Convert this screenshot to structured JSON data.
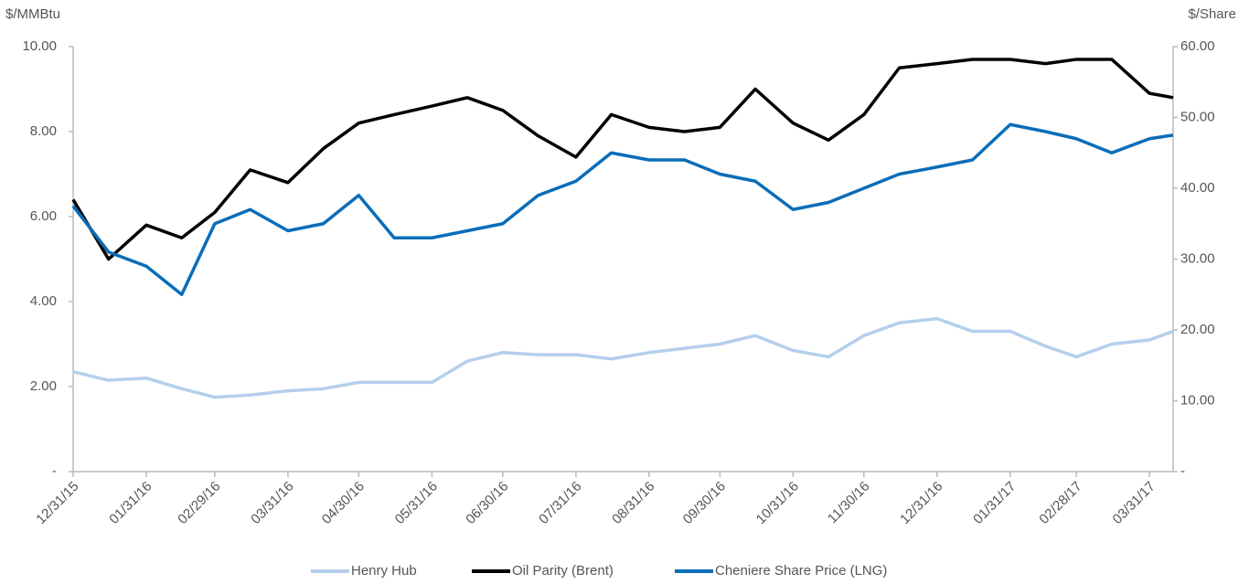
{
  "chart_data": {
    "type": "line",
    "ylabel": "$/MMBtu",
    "y2label": "$/Share",
    "x": [
      "2015-12-31",
      "2016-01-15",
      "2016-01-31",
      "2016-02-15",
      "2016-02-29",
      "2016-03-15",
      "2016-03-31",
      "2016-04-15",
      "2016-04-30",
      "2016-05-15",
      "2016-05-31",
      "2016-06-15",
      "2016-06-30",
      "2016-07-15",
      "2016-07-31",
      "2016-08-15",
      "2016-08-31",
      "2016-09-15",
      "2016-09-30",
      "2016-10-15",
      "2016-10-31",
      "2016-11-15",
      "2016-11-30",
      "2016-12-15",
      "2016-12-31",
      "2017-01-15",
      "2017-01-31",
      "2017-02-15",
      "2017-02-28",
      "2017-03-15",
      "2017-03-31",
      "2017-04-10"
    ],
    "series": [
      {
        "name": "Henry Hub",
        "color": "#b4cfec",
        "values": [
          2.35,
          2.15,
          2.2,
          1.95,
          1.75,
          1.8,
          1.9,
          1.95,
          2.1,
          2.1,
          2.1,
          2.6,
          2.8,
          2.75,
          2.75,
          2.65,
          2.8,
          2.9,
          3.0,
          3.2,
          2.85,
          2.7,
          3.2,
          3.5,
          3.6,
          3.3,
          3.3,
          2.95,
          2.7,
          3.0,
          3.1,
          3.3
        ]
      },
      {
        "name": "Oil Parity (Brent)",
        "color": "#000000",
        "values": [
          6.4,
          5.0,
          5.8,
          5.5,
          6.1,
          7.1,
          6.8,
          7.6,
          8.2,
          8.4,
          8.6,
          8.8,
          8.5,
          7.9,
          7.4,
          8.4,
          8.1,
          8.0,
          8.1,
          9.0,
          8.2,
          7.8,
          8.4,
          9.5,
          9.6,
          9.7,
          9.7,
          9.6,
          9.7,
          9.7,
          8.9,
          8.8
        ]
      },
      {
        "name": "Cheniere Share Price (LNG)",
        "color": "#0a6db8",
        "axis": "y2",
        "values": [
          37.5,
          31,
          29,
          25,
          35,
          37,
          34,
          35,
          39,
          33,
          33,
          34,
          35,
          39,
          41,
          45,
          44,
          44,
          42,
          41,
          37,
          38,
          40,
          42,
          43,
          44,
          49,
          48,
          47,
          45,
          47,
          47.5
        ]
      }
    ],
    "xlim": [
      "2015-12-31",
      "2017-04-10"
    ],
    "xticks": [
      {
        "value": "2015-12-31",
        "label": "12/31/15"
      },
      {
        "value": "2016-01-31",
        "label": "01/31/16"
      },
      {
        "value": "2016-02-29",
        "label": "02/29/16"
      },
      {
        "value": "2016-03-31",
        "label": "03/31/16"
      },
      {
        "value": "2016-04-30",
        "label": "04/30/16"
      },
      {
        "value": "2016-05-31",
        "label": "05/31/16"
      },
      {
        "value": "2016-06-30",
        "label": "06/30/16"
      },
      {
        "value": "2016-07-31",
        "label": "07/31/16"
      },
      {
        "value": "2016-08-31",
        "label": "08/31/16"
      },
      {
        "value": "2016-09-30",
        "label": "09/30/16"
      },
      {
        "value": "2016-10-31",
        "label": "10/31/16"
      },
      {
        "value": "2016-11-30",
        "label": "11/30/16"
      },
      {
        "value": "2016-12-31",
        "label": "12/31/16"
      },
      {
        "value": "2017-01-31",
        "label": "01/31/17"
      },
      {
        "value": "2017-02-28",
        "label": "02/28/17"
      },
      {
        "value": "2017-03-31",
        "label": "03/31/17"
      }
    ],
    "ylim": [
      0,
      10
    ],
    "yticks": [
      {
        "value": 0,
        "label": "-"
      },
      {
        "value": 2,
        "label": "2.00"
      },
      {
        "value": 4,
        "label": "4.00"
      },
      {
        "value": 6,
        "label": "6.00"
      },
      {
        "value": 8,
        "label": "8.00"
      },
      {
        "value": 10,
        "label": "10.00"
      }
    ],
    "y2lim": [
      0,
      60
    ],
    "y2ticks": [
      {
        "value": 0,
        "label": "-"
      },
      {
        "value": 10,
        "label": "10.00"
      },
      {
        "value": 20,
        "label": "20.00"
      },
      {
        "value": 30,
        "label": "30.00"
      },
      {
        "value": 40,
        "label": "40.00"
      },
      {
        "value": 50,
        "label": "50.00"
      },
      {
        "value": 60,
        "label": "60.00"
      }
    ],
    "legend": "bottom"
  }
}
